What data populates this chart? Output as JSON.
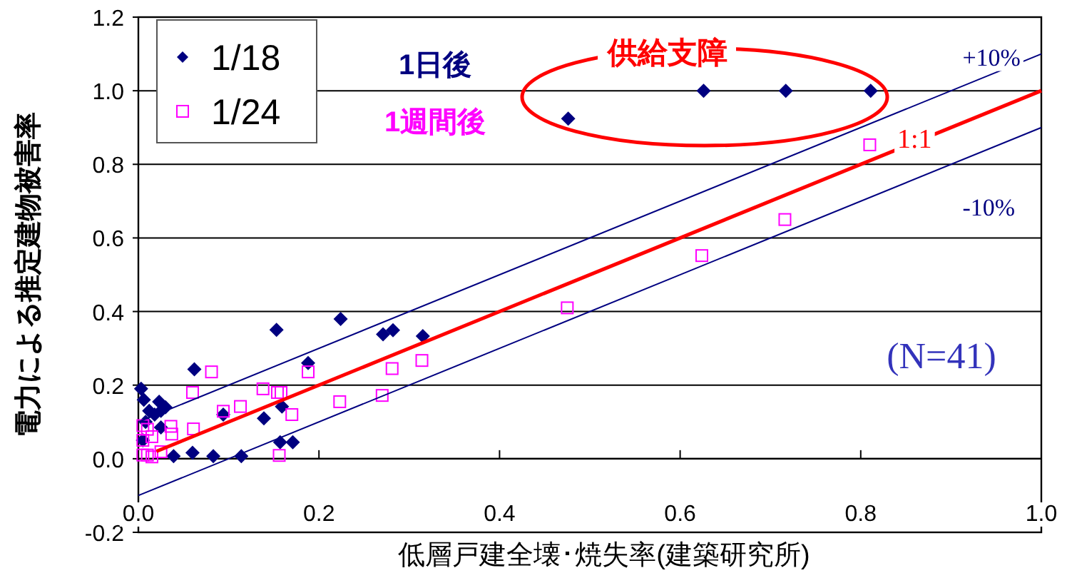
{
  "chart_data": {
    "type": "scatter",
    "ylabel": "電力による推定建物被害率",
    "xlabel": "低層戸建全壊･焼失率(建築研究所)",
    "xlim": [
      0,
      1
    ],
    "ylim": [
      -0.2,
      1.2
    ],
    "xticks": [
      {
        "value": 0,
        "label": "0.0"
      },
      0.2,
      0.4,
      0.6,
      0.8,
      {
        "value": 1,
        "label": "1.0"
      }
    ],
    "yticks": [
      -0.2,
      {
        "value": 0,
        "label": "0.0"
      },
      0.2,
      0.4,
      0.6,
      0.8,
      {
        "value": 1,
        "label": "1.0"
      },
      1.2
    ],
    "grid": "y",
    "legend": "top left",
    "annotations": [
      "1日後",
      "1週間後",
      "供給支障",
      "(N=41)"
    ],
    "series": [
      {
        "name": "1/18",
        "color": "#000080",
        "marker": "diamond",
        "x": [
          0.003,
          0.006,
          0.023,
          0.012,
          0.018,
          0.025,
          0.03,
          0.008,
          0.015,
          0.025,
          0.062,
          0.153,
          0.224,
          0.271,
          0.282,
          0.315,
          0.188,
          0.159,
          0.139,
          0.094,
          0.157,
          0.171,
          0.039,
          0.06,
          0.083,
          0.114,
          0.476,
          0.626,
          0.717,
          0.811,
          0.005
        ],
        "values": [
          0.19,
          0.16,
          0.155,
          0.13,
          0.12,
          0.13,
          0.14,
          0.1,
          null,
          0.085,
          0.243,
          0.35,
          0.38,
          0.338,
          0.349,
          0.333,
          0.26,
          0.142,
          0.11,
          0.12,
          0.045,
          0.045,
          0.007,
          0.016,
          0.007,
          0.007,
          0.924,
          1.0,
          1.0,
          1.0,
          0.05
        ]
      },
      {
        "name": "1/24",
        "color": "#ff00ff",
        "marker": "square",
        "x": [
          0.081,
          0.06,
          0.138,
          0.154,
          0.158,
          0.188,
          0.281,
          0.314,
          0.094,
          0.113,
          0.17,
          0.223,
          0.27,
          0.061,
          0.036,
          0.037,
          0.156,
          0.025,
          0.475,
          0.624,
          0.716,
          0.81,
          0.005,
          0.01,
          0.015,
          0.005,
          0.01,
          0.005,
          0.015
        ],
        "values": [
          0.236,
          0.18,
          0.19,
          0.18,
          0.18,
          0.236,
          0.245,
          0.267,
          0.129,
          0.142,
          0.12,
          0.155,
          0.172,
          0.081,
          0.088,
          0.067,
          0.009,
          0.019,
          0.41,
          0.552,
          0.65,
          0.853,
          0.01,
          0.01,
          0.005,
          0.05,
          0.08,
          0.09,
          0.06
        ]
      },
      {
        "name": "+10%",
        "type": "line",
        "color": "#000080",
        "x": [
          0,
          1
        ],
        "values": [
          0.1,
          1.1
        ]
      },
      {
        "name": "1:1",
        "type": "line",
        "color": "#ff0000",
        "x": [
          0.02,
          1
        ],
        "values": [
          0.02,
          1.0
        ]
      },
      {
        "name": "-10%",
        "type": "line",
        "color": "#000080",
        "x": [
          0,
          1
        ],
        "values": [
          -0.1,
          0.9
        ]
      }
    ]
  }
}
